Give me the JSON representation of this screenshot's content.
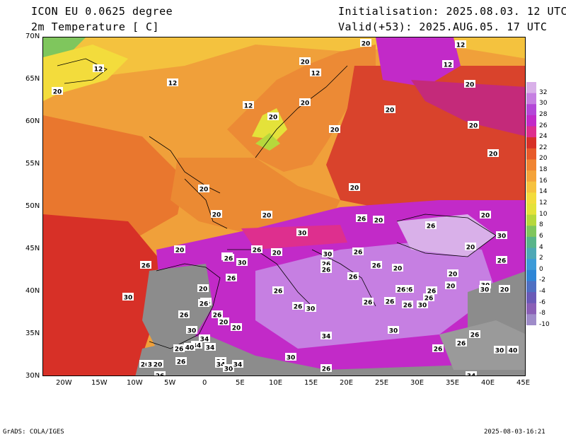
{
  "header": {
    "model": "ICON EU 0.0625 degree",
    "variable": "2m Temperature [ C]",
    "init": "Initialisation: 2025.08.03. 12 UTC",
    "valid": "Valid(+53): 2025.AUG.05. 17 UTC"
  },
  "axes": {
    "lat_labels": [
      "70N",
      "65N",
      "60N",
      "55N",
      "50N",
      "45N",
      "40N",
      "35N",
      "30N"
    ],
    "lon_labels": [
      "20W",
      "15W",
      "10W",
      "5W",
      "0",
      "5E",
      "10E",
      "15E",
      "20E",
      "25E",
      "30E",
      "35E",
      "40E",
      "45E"
    ]
  },
  "colorbar": {
    "levels": [
      "32",
      "30",
      "28",
      "26",
      "24",
      "22",
      "20",
      "18",
      "16",
      "14",
      "12",
      "10",
      "8",
      "6",
      "4",
      "2",
      "0",
      "-2",
      "-4",
      "-6",
      "-8",
      "-10"
    ],
    "colors": [
      "#d9b0e9",
      "#c67fe2",
      "#b447d8",
      "#c22ac8",
      "#de2f8e",
      "#d73027",
      "#e75a2a",
      "#f08432",
      "#f4a33a",
      "#f6c23e",
      "#f3dc3c",
      "#e4e23a",
      "#b6d83c",
      "#7fc65d",
      "#58b48a",
      "#4ea8b5",
      "#3d9bd8",
      "#2f86d6",
      "#4f6fc2",
      "#6a5ab7",
      "#8a5fb6",
      "#9f8cc9"
    ]
  },
  "temperature_labels": [
    "20",
    "12",
    "20",
    "12",
    "12",
    "12",
    "20",
    "12",
    "20",
    "12",
    "20",
    "20",
    "20",
    "20",
    "20",
    "20",
    "20",
    "20",
    "20",
    "20",
    "20",
    "26",
    "20",
    "26",
    "30",
    "30",
    "20",
    "26",
    "20",
    "20",
    "26",
    "30",
    "20",
    "26",
    "26",
    "30",
    "26",
    "20",
    "26",
    "26",
    "26",
    "26",
    "20",
    "26",
    "20",
    "26",
    "30",
    "26",
    "26",
    "30",
    "30",
    "26",
    "20",
    "20",
    "26",
    "26",
    "26",
    "30",
    "26",
    "30",
    "26",
    "26",
    "30",
    "20",
    "34",
    "20",
    "26",
    "30",
    "34",
    "34",
    "26",
    "26",
    "26",
    "26",
    "34",
    "30",
    "34",
    "26",
    "30",
    "34",
    "40",
    "34",
    "26",
    "30",
    "40",
    "34",
    "26",
    "30",
    "20",
    "26",
    "26",
    "26",
    "26"
  ],
  "footer": {
    "left": "GrADS: COLA/IGES",
    "right": "2025-08-03-16:21"
  }
}
